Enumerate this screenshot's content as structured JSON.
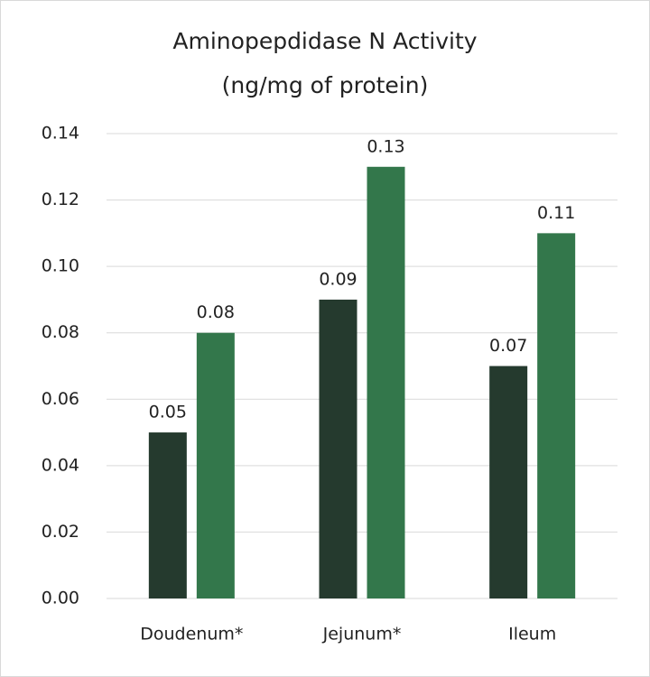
{
  "chart_data": {
    "type": "bar",
    "title": "Aminopepdidase N Activity",
    "subtitle": "(ng/mg of protein)",
    "categories": [
      "Doudenum*",
      "Jejunum*",
      "Ileum"
    ],
    "series": [
      {
        "color": "#253a2e",
        "values": [
          0.05,
          0.09,
          0.07
        ]
      },
      {
        "color": "#33774b",
        "values": [
          0.08,
          0.13,
          0.11
        ]
      }
    ],
    "ylim": [
      0,
      0.14
    ],
    "yticks": [
      {
        "value": 0,
        "label": "0.00"
      },
      0.02,
      0.04,
      0.06,
      0.08,
      {
        "value": 0.1,
        "label": "0.10"
      },
      0.12,
      0.14
    ],
    "grid": true
  }
}
